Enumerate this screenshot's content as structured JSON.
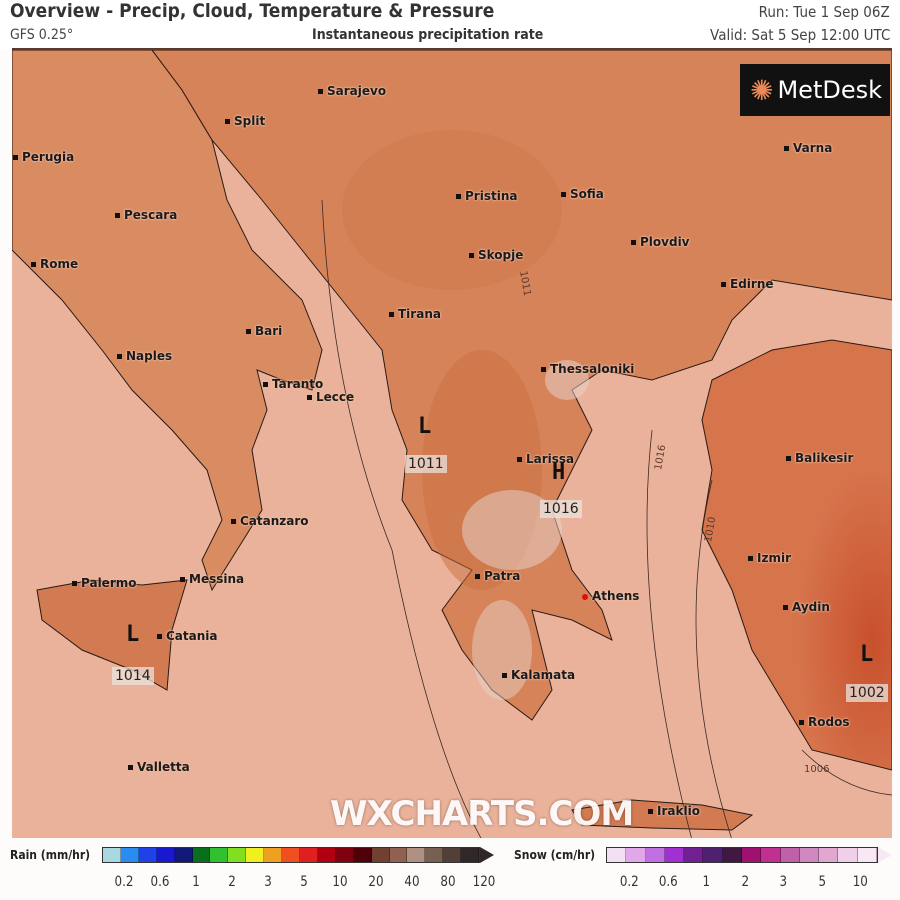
{
  "header": {
    "title": "Overview - Precip, Cloud, Temperature & Pressure",
    "model": "GFS 0.25°",
    "subtitle": "Instantaneous precipitation rate",
    "run": "Run: Tue 1 Sep 06Z",
    "valid": "Valid: Sat 5 Sep 12:00 UTC"
  },
  "logo": {
    "text": "MetDesk"
  },
  "watermark": "WXCHARTS.COM",
  "cities": [
    "Sarajevo",
    "Split",
    "Perugia",
    "Pescara",
    "Rome",
    "Bari",
    "Naples",
    "Taranto",
    "Lecce",
    "Catanzaro",
    "Palermo",
    "Messina",
    "Catania",
    "Valletta",
    "Pristina",
    "Sofia",
    "Skopje",
    "Plovdiv",
    "Varna",
    "Edirne",
    "Tirana",
    "Thessaloniki",
    "Larissa",
    "Patra",
    "Athens",
    "Kalamata",
    "Izmir",
    "Balikesir",
    "Aydin",
    "Rodos",
    "Iraklio"
  ],
  "pressure_centres": [
    {
      "type": "L",
      "value": "1011"
    },
    {
      "type": "H",
      "value": "1016"
    },
    {
      "type": "L",
      "value": "1014"
    },
    {
      "type": "L",
      "value": "1002"
    }
  ],
  "isobar_labels": [
    "1011",
    "1016",
    "1010",
    "1006"
  ],
  "legend": {
    "rain": {
      "label": "Rain (mm/hr)",
      "ticks": [
        "0.2",
        "0.6",
        "1",
        "2",
        "3",
        "5",
        "10",
        "20",
        "40",
        "80",
        "120"
      ],
      "colors": [
        "#a8d8e0",
        "#2a8cf0",
        "#2040e8",
        "#1818d0",
        "#101878",
        "#08701c",
        "#30c030",
        "#80e020",
        "#f0f020",
        "#f0a020",
        "#f05020",
        "#e02020",
        "#b00010",
        "#800010",
        "#500008",
        "#704030",
        "#906050",
        "#b09080",
        "#786050",
        "#504038",
        "#302828"
      ]
    },
    "snow": {
      "label": "Snow (cm/hr)",
      "ticks": [
        "0.2",
        "0.6",
        "1",
        "2",
        "3",
        "5",
        "10"
      ],
      "colors": [
        "#f0e0f0",
        "#e0a8e8",
        "#c070e0",
        "#a030d0",
        "#702090",
        "#502070",
        "#401840",
        "#a01070",
        "#c03090",
        "#c060a8",
        "#d088c0",
        "#e0a8d0",
        "#f0d0e8",
        "#f8e8f4"
      ]
    }
  },
  "colors": {
    "sea": "#eab29a",
    "land": "#d9875e",
    "highland": "#c56a3e"
  }
}
